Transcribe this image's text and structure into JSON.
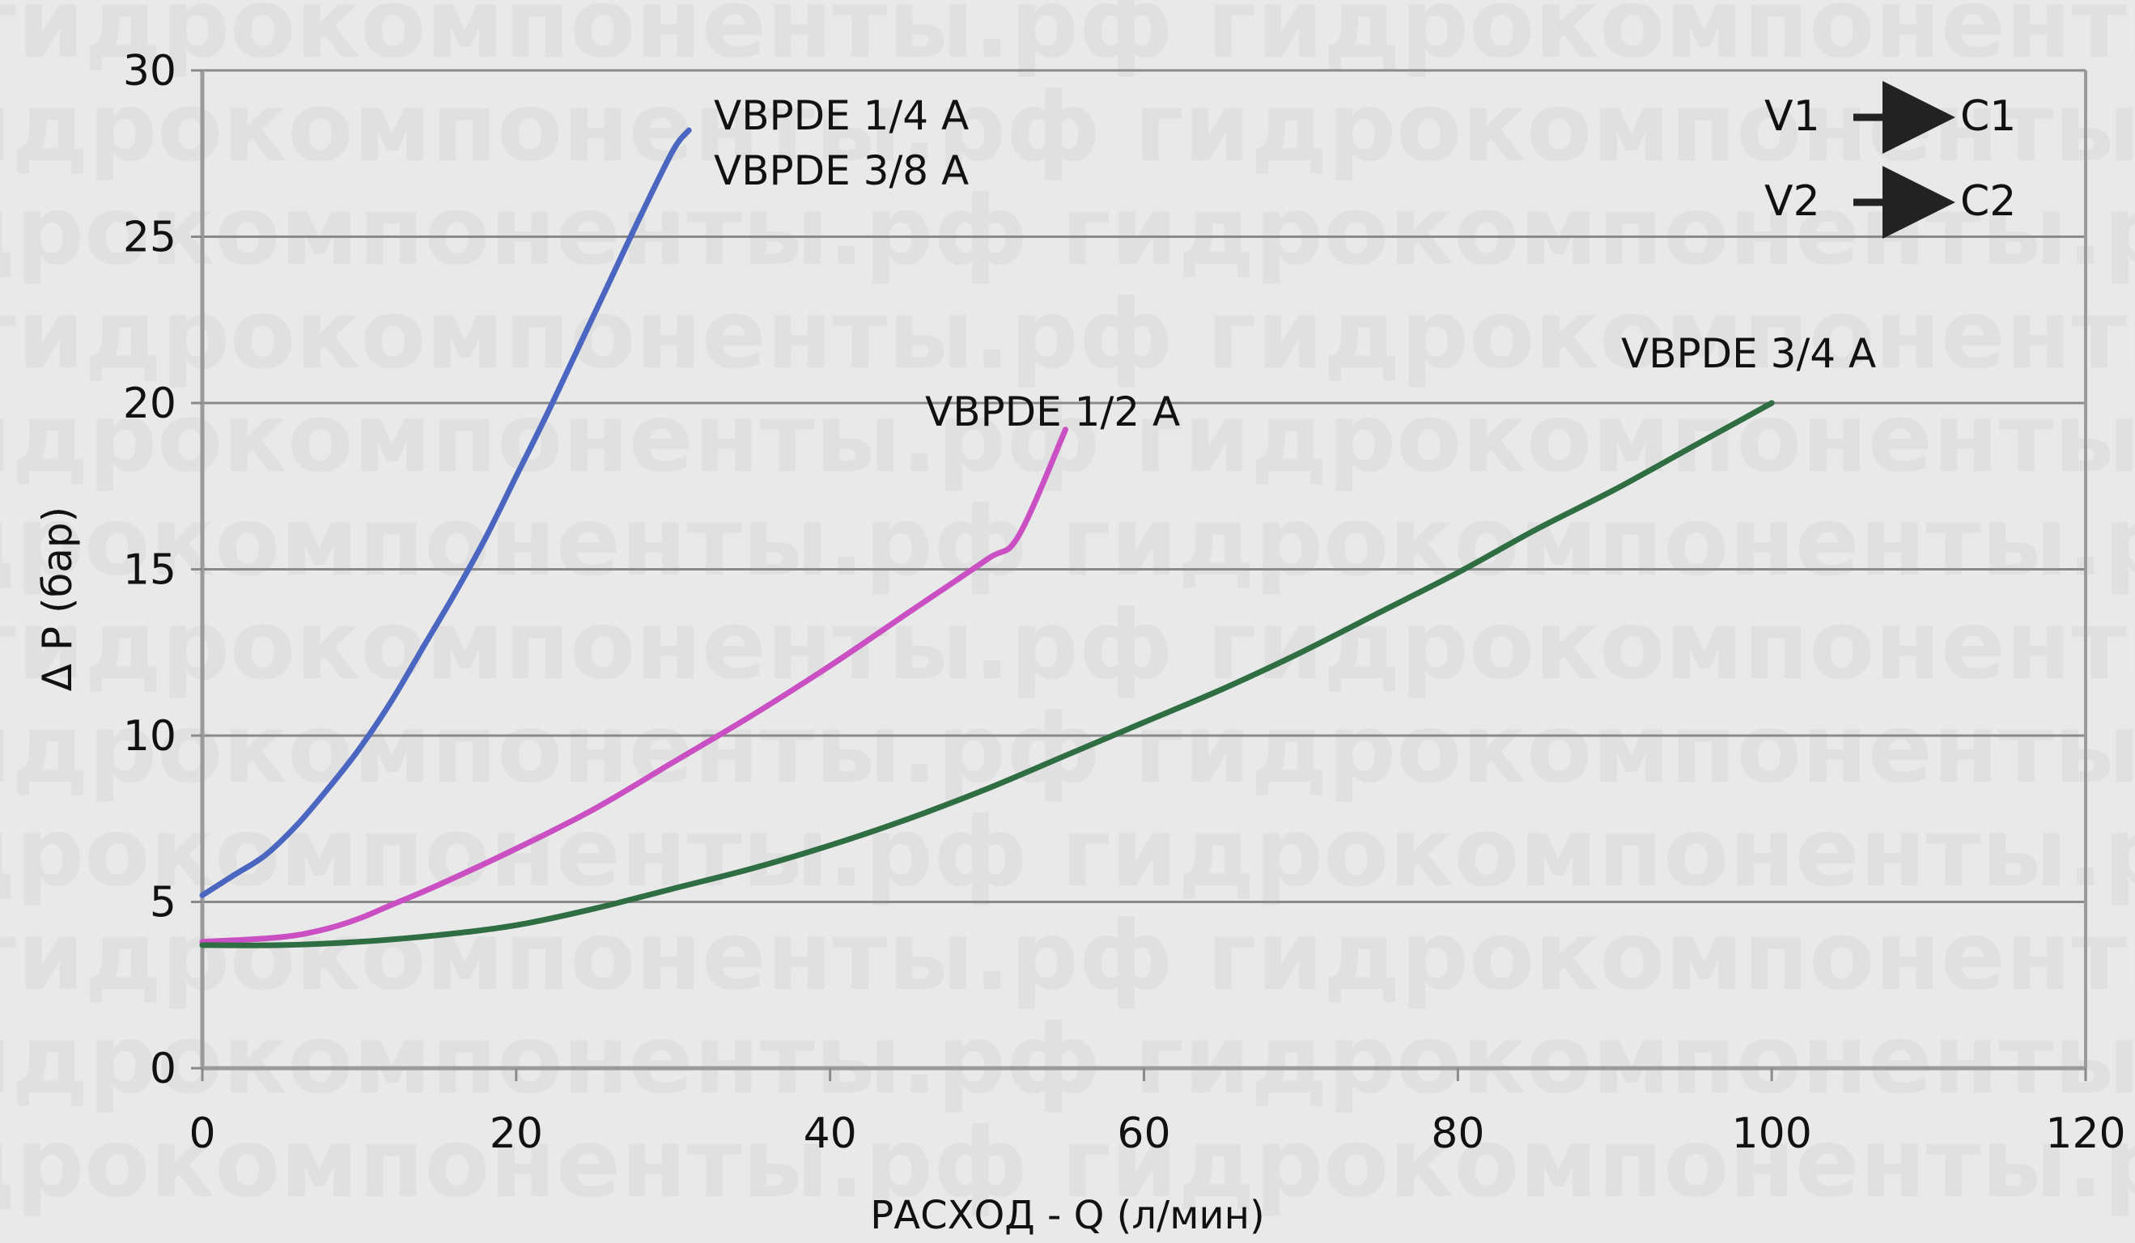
{
  "chart_data": {
    "type": "line",
    "title": "",
    "xlabel": "РАСХОД - Q (л/мин)",
    "ylabel": "Δ P (бар)",
    "xlim": [
      0,
      120
    ],
    "ylim": [
      0,
      30
    ],
    "x_ticks": [
      0,
      20,
      40,
      60,
      80,
      100,
      120
    ],
    "y_ticks": [
      0,
      5,
      10,
      15,
      20,
      25,
      30
    ],
    "grid": "horizontal",
    "series": [
      {
        "name": "VBPDE 1/4 A",
        "name2": "VBPDE 3/8 A",
        "color": "#4a66c0",
        "x": [
          0,
          2,
          4,
          6,
          8,
          10,
          12,
          14,
          16,
          18,
          20,
          22,
          24,
          26,
          28,
          30,
          31
        ],
        "y": [
          5.2,
          5.8,
          6.4,
          7.3,
          8.4,
          9.6,
          11.0,
          12.6,
          14.2,
          15.9,
          17.8,
          19.7,
          21.7,
          23.7,
          25.7,
          27.6,
          28.2
        ]
      },
      {
        "name": "VBPDE 1/2 A",
        "color": "#c94fc3",
        "x": [
          0,
          4,
          6,
          8,
          10,
          12,
          15,
          20,
          25,
          30,
          35,
          40,
          45,
          50,
          52,
          55
        ],
        "y": [
          3.8,
          3.9,
          4.0,
          4.2,
          4.5,
          4.9,
          5.5,
          6.6,
          7.8,
          9.2,
          10.6,
          12.1,
          13.7,
          15.3,
          16.0,
          19.2
        ]
      },
      {
        "name": "VBPDE 3/4 A",
        "color": "#2f6d43",
        "x": [
          0,
          5,
          10,
          15,
          20,
          25,
          30,
          35,
          40,
          45,
          50,
          55,
          60,
          65,
          70,
          75,
          80,
          85,
          90,
          95,
          100
        ],
        "y": [
          3.7,
          3.7,
          3.8,
          4.0,
          4.3,
          4.8,
          5.4,
          6.0,
          6.7,
          7.5,
          8.4,
          9.4,
          10.4,
          11.4,
          12.5,
          13.7,
          14.9,
          16.2,
          17.4,
          18.7,
          20.0
        ]
      }
    ],
    "annotations": {
      "v1": "V1",
      "c1": "C1",
      "v2": "V2",
      "c2": "C2"
    }
  },
  "watermark": "гидрокомпоненты.рф"
}
